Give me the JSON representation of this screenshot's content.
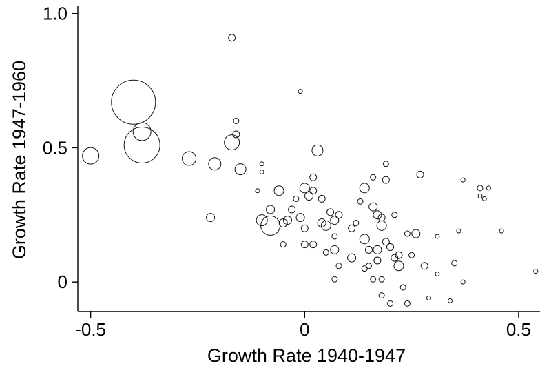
{
  "chart_data": {
    "type": "scatter",
    "title": "",
    "xlabel": "Growth Rate 1940-1947",
    "ylabel": "Growth Rate 1947-1960",
    "xlim": [
      -0.53,
      0.55
    ],
    "ylim": [
      -0.11,
      1.03
    ],
    "xticks": [
      {
        "value": -0.5,
        "label": "-0.5"
      },
      {
        "value": 0,
        "label": "0"
      },
      {
        "value": 0.5,
        "label": "0.5"
      }
    ],
    "yticks": [
      {
        "value": 0,
        "label": "0"
      },
      {
        "value": 0.5,
        "label": "0.5"
      },
      {
        "value": 1.0,
        "label": "1.0"
      }
    ],
    "grid": false,
    "legend": "none",
    "marker": "hollow circle, area proportional to weight",
    "points": [
      {
        "x": -0.4,
        "y": 0.67,
        "s": 32
      },
      {
        "x": -0.38,
        "y": 0.51,
        "s": 26
      },
      {
        "x": -0.38,
        "y": 0.56,
        "s": 13
      },
      {
        "x": -0.5,
        "y": 0.47,
        "s": 12
      },
      {
        "x": -0.27,
        "y": 0.46,
        "s": 10
      },
      {
        "x": -0.21,
        "y": 0.44,
        "s": 9
      },
      {
        "x": -0.17,
        "y": 0.52,
        "s": 11
      },
      {
        "x": -0.15,
        "y": 0.42,
        "s": 8
      },
      {
        "x": -0.16,
        "y": 0.55,
        "s": 5
      },
      {
        "x": -0.16,
        "y": 0.6,
        "s": 4
      },
      {
        "x": -0.17,
        "y": 0.91,
        "s": 5
      },
      {
        "x": -0.22,
        "y": 0.24,
        "s": 6
      },
      {
        "x": -0.11,
        "y": 0.34,
        "s": 3
      },
      {
        "x": -0.1,
        "y": 0.41,
        "s": 3
      },
      {
        "x": -0.1,
        "y": 0.44,
        "s": 3
      },
      {
        "x": -0.08,
        "y": 0.21,
        "s": 14
      },
      {
        "x": -0.1,
        "y": 0.23,
        "s": 8
      },
      {
        "x": -0.08,
        "y": 0.27,
        "s": 6
      },
      {
        "x": -0.06,
        "y": 0.34,
        "s": 7
      },
      {
        "x": -0.05,
        "y": 0.22,
        "s": 6
      },
      {
        "x": -0.04,
        "y": 0.23,
        "s": 6
      },
      {
        "x": -0.03,
        "y": 0.27,
        "s": 5
      },
      {
        "x": -0.02,
        "y": 0.31,
        "s": 4
      },
      {
        "x": -0.01,
        "y": 0.24,
        "s": 6
      },
      {
        "x": 0.0,
        "y": 0.2,
        "s": 5
      },
      {
        "x": 0.0,
        "y": 0.35,
        "s": 7
      },
      {
        "x": 0.01,
        "y": 0.32,
        "s": 6
      },
      {
        "x": 0.02,
        "y": 0.34,
        "s": 5
      },
      {
        "x": 0.02,
        "y": 0.39,
        "s": 5
      },
      {
        "x": 0.03,
        "y": 0.49,
        "s": 8
      },
      {
        "x": -0.01,
        "y": 0.71,
        "s": 3
      },
      {
        "x": 0.04,
        "y": 0.31,
        "s": 5
      },
      {
        "x": 0.04,
        "y": 0.22,
        "s": 6
      },
      {
        "x": 0.05,
        "y": 0.21,
        "s": 7
      },
      {
        "x": 0.06,
        "y": 0.26,
        "s": 5
      },
      {
        "x": 0.07,
        "y": 0.23,
        "s": 6
      },
      {
        "x": 0.07,
        "y": 0.17,
        "s": 4
      },
      {
        "x": 0.08,
        "y": 0.25,
        "s": 5
      },
      {
        "x": -0.05,
        "y": 0.14,
        "s": 4
      },
      {
        "x": 0.0,
        "y": 0.14,
        "s": 5
      },
      {
        "x": 0.02,
        "y": 0.14,
        "s": 5
      },
      {
        "x": 0.05,
        "y": 0.11,
        "s": 4
      },
      {
        "x": 0.07,
        "y": 0.12,
        "s": 6
      },
      {
        "x": 0.08,
        "y": 0.06,
        "s": 4
      },
      {
        "x": 0.07,
        "y": 0.01,
        "s": 4
      },
      {
        "x": 0.11,
        "y": 0.09,
        "s": 6
      },
      {
        "x": 0.11,
        "y": 0.2,
        "s": 5
      },
      {
        "x": 0.12,
        "y": 0.22,
        "s": 4
      },
      {
        "x": 0.13,
        "y": 0.3,
        "s": 4
      },
      {
        "x": 0.14,
        "y": 0.35,
        "s": 7
      },
      {
        "x": 0.14,
        "y": 0.16,
        "s": 7
      },
      {
        "x": 0.14,
        "y": 0.05,
        "s": 4
      },
      {
        "x": 0.15,
        "y": 0.06,
        "s": 4
      },
      {
        "x": 0.15,
        "y": 0.12,
        "s": 5
      },
      {
        "x": 0.16,
        "y": 0.28,
        "s": 6
      },
      {
        "x": 0.16,
        "y": 0.39,
        "s": 4
      },
      {
        "x": 0.17,
        "y": 0.25,
        "s": 6
      },
      {
        "x": 0.17,
        "y": 0.12,
        "s": 6
      },
      {
        "x": 0.17,
        "y": 0.08,
        "s": 5
      },
      {
        "x": 0.16,
        "y": 0.01,
        "s": 4
      },
      {
        "x": 0.18,
        "y": 0.21,
        "s": 7
      },
      {
        "x": 0.18,
        "y": 0.24,
        "s": 5
      },
      {
        "x": 0.18,
        "y": 0.01,
        "s": 4
      },
      {
        "x": 0.18,
        "y": -0.05,
        "s": 4
      },
      {
        "x": 0.19,
        "y": 0.38,
        "s": 5
      },
      {
        "x": 0.19,
        "y": 0.44,
        "s": 4
      },
      {
        "x": 0.19,
        "y": 0.15,
        "s": 5
      },
      {
        "x": 0.2,
        "y": 0.13,
        "s": 5
      },
      {
        "x": 0.21,
        "y": 0.09,
        "s": 5
      },
      {
        "x": 0.21,
        "y": 0.25,
        "s": 4
      },
      {
        "x": 0.22,
        "y": 0.06,
        "s": 7
      },
      {
        "x": 0.22,
        "y": 0.1,
        "s": 5
      },
      {
        "x": 0.23,
        "y": -0.02,
        "s": 4
      },
      {
        "x": 0.24,
        "y": 0.18,
        "s": 4
      },
      {
        "x": 0.2,
        "y": -0.08,
        "s": 4
      },
      {
        "x": 0.24,
        "y": -0.08,
        "s": 4
      },
      {
        "x": 0.25,
        "y": 0.1,
        "s": 4
      },
      {
        "x": 0.26,
        "y": 0.18,
        "s": 6
      },
      {
        "x": 0.27,
        "y": 0.4,
        "s": 5
      },
      {
        "x": 0.28,
        "y": 0.06,
        "s": 5
      },
      {
        "x": 0.29,
        "y": -0.06,
        "s": 3
      },
      {
        "x": 0.31,
        "y": 0.03,
        "s": 3
      },
      {
        "x": 0.31,
        "y": 0.17,
        "s": 3
      },
      {
        "x": 0.34,
        "y": -0.07,
        "s": 3
      },
      {
        "x": 0.35,
        "y": 0.07,
        "s": 4
      },
      {
        "x": 0.36,
        "y": 0.19,
        "s": 3
      },
      {
        "x": 0.37,
        "y": 0.38,
        "s": 3
      },
      {
        "x": 0.37,
        "y": 0.0,
        "s": 3
      },
      {
        "x": 0.41,
        "y": 0.35,
        "s": 4
      },
      {
        "x": 0.41,
        "y": 0.32,
        "s": 3
      },
      {
        "x": 0.42,
        "y": 0.31,
        "s": 3
      },
      {
        "x": 0.43,
        "y": 0.35,
        "s": 3
      },
      {
        "x": 0.46,
        "y": 0.19,
        "s": 3
      },
      {
        "x": 0.54,
        "y": 0.04,
        "s": 3
      }
    ]
  }
}
